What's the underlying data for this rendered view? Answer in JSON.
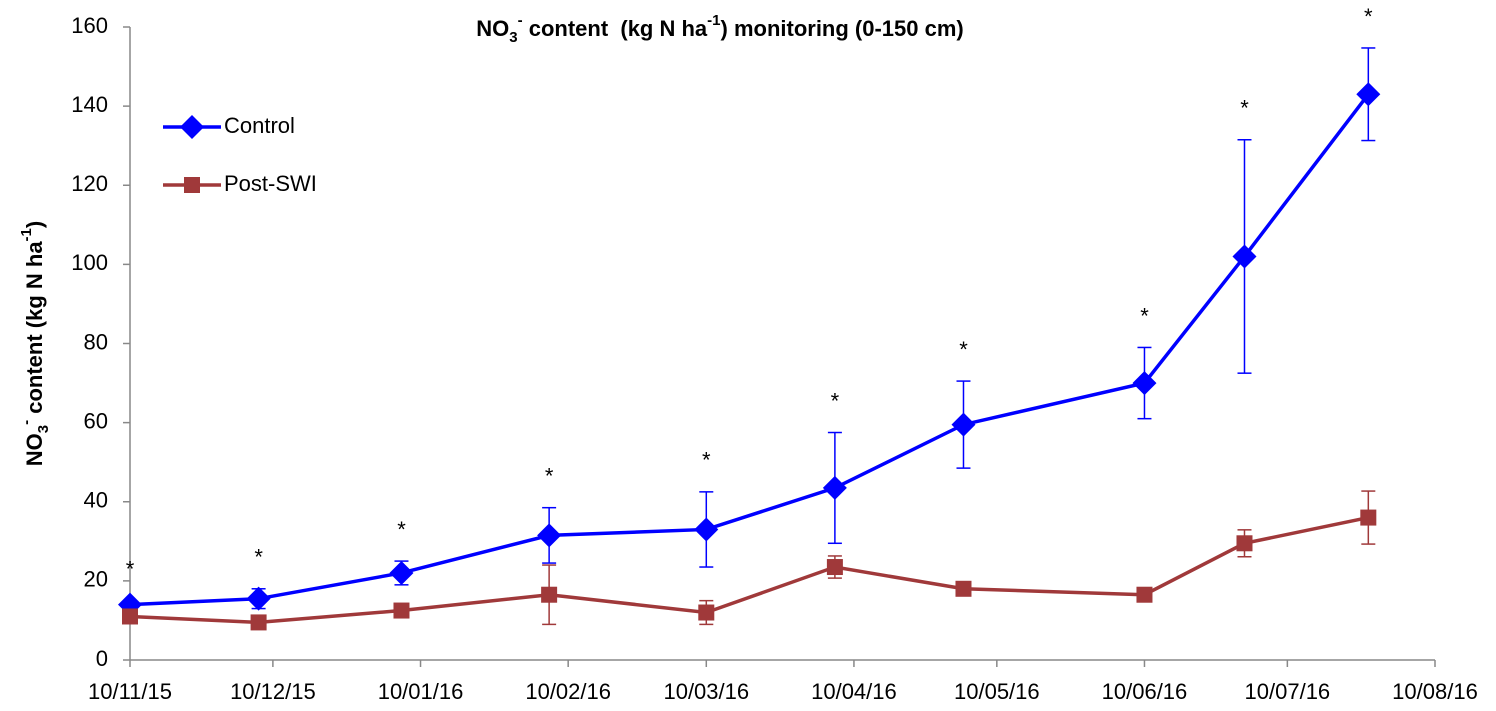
{
  "chart_data": {
    "type": "line",
    "title": [
      {
        "text": "NO"
      },
      {
        "text": "3",
        "sub": true
      },
      {
        "text": "-",
        "sup": true
      },
      {
        "text": " content  (kg N ha"
      },
      {
        "text": "-1",
        "sup": true
      },
      {
        "text": ") monitoring (0-150 cm)"
      }
    ],
    "y_label": [
      {
        "text": "NO"
      },
      {
        "text": "3",
        "sub": true
      },
      {
        "text": "-",
        "sup": true
      },
      {
        "text": " content (kg N ha"
      },
      {
        "text": "-1",
        "sup": true
      },
      {
        "text": ")"
      }
    ],
    "x": [
      "10/11/15",
      "07/12/15",
      "06/01/16",
      "06/02/16",
      "10/03/16",
      "06/04/16",
      "03/05/16",
      "10/06/16",
      "01/07/16",
      "27/07/16"
    ],
    "xlim": [
      "10/11/15",
      "10/08/16"
    ],
    "xticks": [
      "10/11/15",
      "10/12/15",
      "10/01/16",
      "10/02/16",
      "10/03/16",
      "10/04/16",
      "10/05/16",
      "10/06/16",
      "10/07/16",
      "10/08/16"
    ],
    "ylim": [
      0,
      160
    ],
    "yticks": [
      0,
      20,
      40,
      60,
      80,
      100,
      120,
      140,
      160
    ],
    "grid": false,
    "legend": "upper left",
    "series": [
      {
        "name": "Control",
        "color": "#0000ff",
        "marker": "diamond",
        "values": [
          14,
          15.5,
          22,
          31.5,
          33,
          43.5,
          59.5,
          70,
          102,
          143
        ],
        "errors": [
          1,
          2.5,
          3,
          7,
          9.5,
          14,
          11,
          9,
          29.5,
          11.7
        ]
      },
      {
        "name": "Post-SWI",
        "color": "#a0393a",
        "marker": "square",
        "values": [
          11,
          9.5,
          12.5,
          16.5,
          12,
          23.5,
          18,
          16.5,
          29.5,
          36
        ],
        "errors": [
          0.5,
          0.5,
          0.5,
          7.5,
          3,
          2.8,
          0.5,
          0.5,
          3.4,
          6.7
        ]
      }
    ],
    "significance": [
      "*",
      "*",
      "*",
      "*",
      "*",
      "*",
      "*",
      "*",
      "*",
      "*"
    ]
  }
}
